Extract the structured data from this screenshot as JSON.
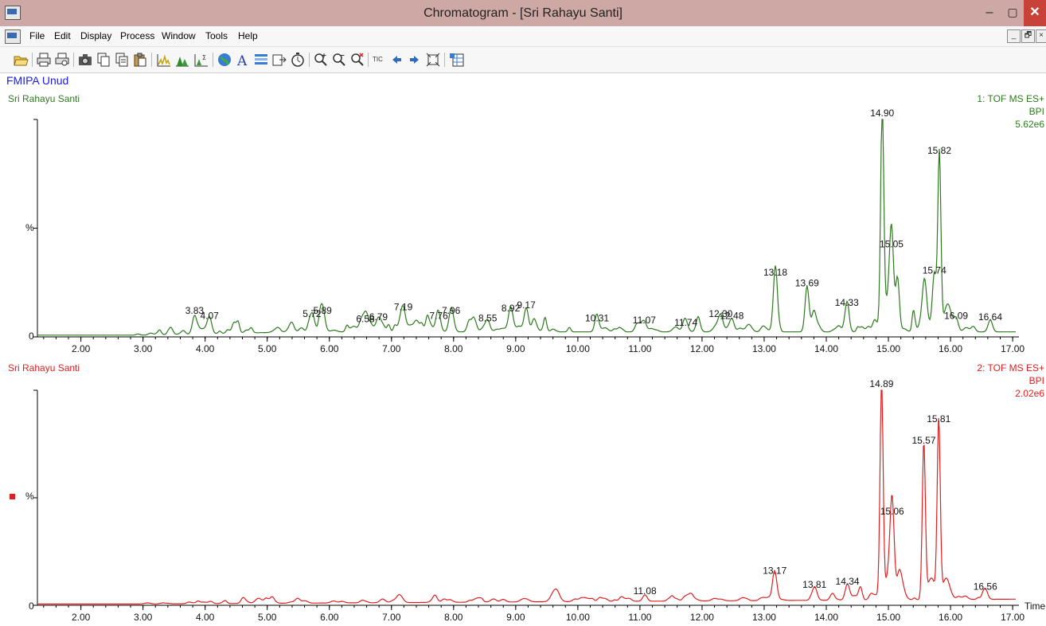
{
  "window": {
    "title": "Chromatogram - [Sri Rahayu Santi]",
    "controls": {
      "minimize": "–",
      "maximize": "▢",
      "close": "✕"
    }
  },
  "menu": {
    "items": [
      "File",
      "Edit",
      "Display",
      "Process",
      "Window",
      "Tools",
      "Help"
    ],
    "mdi": {
      "minimize": "_",
      "restore": "🗗",
      "close": "×"
    }
  },
  "toolbar": {
    "tic_label": "TIC",
    "icons": [
      "open-icon",
      "print-icon",
      "print-preview-icon",
      "camera-icon",
      "copy-icon",
      "copy-list-icon",
      "paste-icon",
      "chromatogram-icon",
      "peak-detect-icon",
      "integrate-icon",
      "globe-icon",
      "text-icon",
      "list-icon",
      "export-icon",
      "timer-icon",
      "zoom-in-icon",
      "zoom-out-icon",
      "zoom-reset-icon",
      "tic-icon",
      "arrow-left-icon",
      "arrow-right-icon",
      "fit-icon",
      "database-icon"
    ]
  },
  "header": {
    "lab": "FMIPA Unud"
  },
  "colors": {
    "trace1": "#2e7a1e",
    "trace2": "#e02020",
    "lab": "#1c1ce0"
  },
  "chart_data": [
    {
      "type": "line",
      "sample": "Sri Rahayu Santi",
      "function": "1: TOF MS ES+",
      "mode": "BPI",
      "intensity": "5.62e6",
      "ylabel": "%",
      "yzero": "0",
      "xlim": [
        1.3,
        17.05
      ],
      "ticks": [
        "2.00",
        "3.00",
        "4.00",
        "5.00",
        "6.00",
        "7.00",
        "8.00",
        "9.00",
        "10.00",
        "11.00",
        "12.00",
        "13.00",
        "14.00",
        "15.00",
        "16.00",
        "17.00"
      ],
      "peaks": [
        {
          "t": 3.83,
          "label": "3.83",
          "i": 8.5
        },
        {
          "t": 4.07,
          "label": "4.07",
          "i": 6.0
        },
        {
          "t": 5.72,
          "label": "5.72",
          "i": 7.0
        },
        {
          "t": 5.89,
          "label": "5.89",
          "i": 8.5
        },
        {
          "t": 6.58,
          "label": "6.58",
          "i": 4.5
        },
        {
          "t": 6.79,
          "label": "6.79",
          "i": 5.5
        },
        {
          "t": 7.19,
          "label": "7.19",
          "i": 10.0
        },
        {
          "t": 7.76,
          "label": "7.76",
          "i": 6.0
        },
        {
          "t": 7.96,
          "label": "7.96",
          "i": 8.5
        },
        {
          "t": 8.55,
          "label": "8.55",
          "i": 5.0
        },
        {
          "t": 8.92,
          "label": "8.92",
          "i": 9.5
        },
        {
          "t": 9.17,
          "label": "9.17",
          "i": 11.0
        },
        {
          "t": 10.31,
          "label": "10.31",
          "i": 5.0
        },
        {
          "t": 11.07,
          "label": "11.07",
          "i": 4.0
        },
        {
          "t": 11.74,
          "label": "11.74",
          "i": 3.0
        },
        {
          "t": 12.3,
          "label": "12.30",
          "i": 7.0
        },
        {
          "t": 12.48,
          "label": "12.48",
          "i": 6.0
        },
        {
          "t": 13.18,
          "label": "13.18",
          "i": 26.0
        },
        {
          "t": 13.69,
          "label": "13.69",
          "i": 21.0
        },
        {
          "t": 14.33,
          "label": "14.33",
          "i": 12.0
        },
        {
          "t": 14.9,
          "label": "14.90",
          "i": 100.0
        },
        {
          "t": 15.05,
          "label": "15.05",
          "i": 39.0
        },
        {
          "t": 15.74,
          "label": "15.74",
          "i": 27.0
        },
        {
          "t": 15.82,
          "label": "15.82",
          "i": 82.0
        },
        {
          "t": 16.09,
          "label": "16.09",
          "i": 6.0
        },
        {
          "t": 16.64,
          "label": "16.64",
          "i": 5.5
        }
      ]
    },
    {
      "type": "line",
      "sample": "Sri Rahayu Santi",
      "function": "2: TOF MS ES+",
      "mode": "BPI",
      "intensity": "2.02e6",
      "ylabel": "%",
      "yzero": "0",
      "xlabel": "Time",
      "xlim": [
        1.3,
        17.05
      ],
      "ticks": [
        "2.00",
        "3.00",
        "4.00",
        "5.00",
        "6.00",
        "7.00",
        "8.00",
        "9.00",
        "10.00",
        "11.00",
        "12.00",
        "13.00",
        "14.00",
        "15.00",
        "16.00",
        "17.00"
      ],
      "peaks": [
        {
          "t": 11.08,
          "label": "11.08",
          "i": 3.0
        },
        {
          "t": 13.17,
          "label": "13.17",
          "i": 12.5
        },
        {
          "t": 13.81,
          "label": "13.81",
          "i": 6.0
        },
        {
          "t": 14.34,
          "label": "14.34",
          "i": 7.5
        },
        {
          "t": 14.89,
          "label": "14.89",
          "i": 100.0
        },
        {
          "t": 15.06,
          "label": "15.06",
          "i": 40.0
        },
        {
          "t": 15.57,
          "label": "15.57",
          "i": 73.0
        },
        {
          "t": 15.81,
          "label": "15.81",
          "i": 83.0
        },
        {
          "t": 16.56,
          "label": "16.56",
          "i": 5.0
        }
      ]
    }
  ]
}
